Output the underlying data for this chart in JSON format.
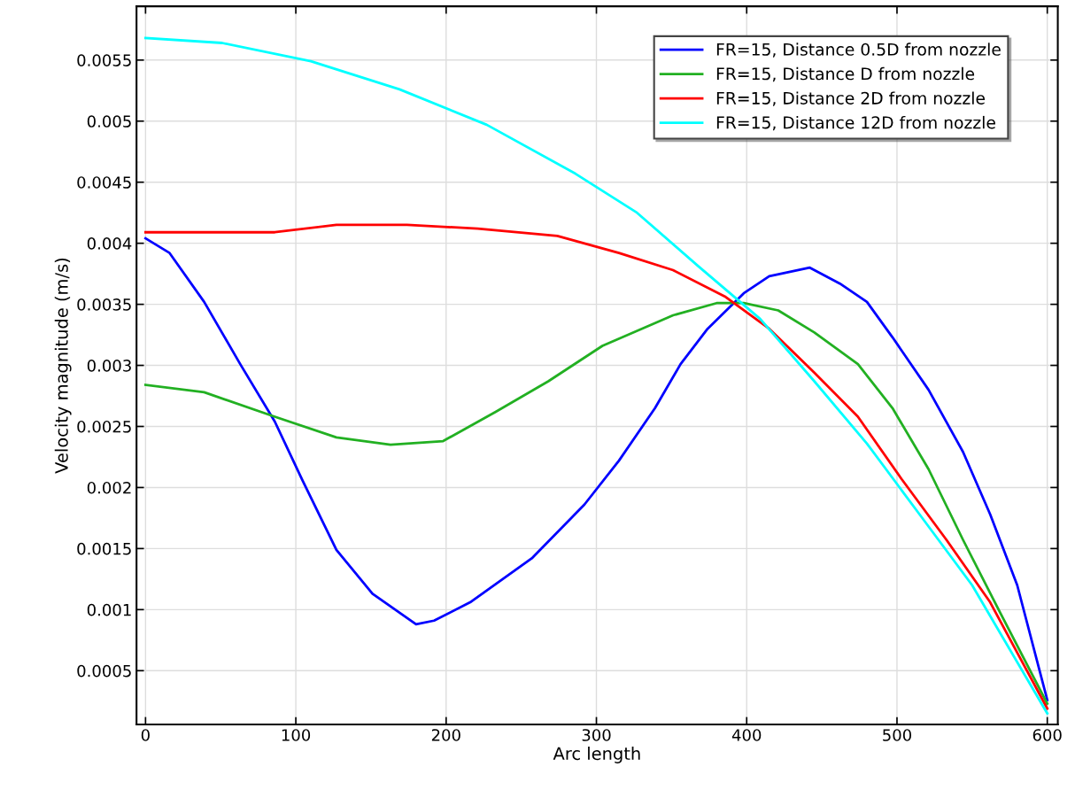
{
  "chart_data": {
    "type": "line",
    "xlabel": "Arc length",
    "ylabel": "Velocity magnitude (m/s)",
    "xlim": [
      -6,
      607
    ],
    "ylim": [
      6e-05,
      0.00594
    ],
    "xticks": [
      0,
      100,
      200,
      300,
      400,
      500,
      600
    ],
    "yticks": [
      0.0005,
      0.001,
      0.0015,
      0.002,
      0.0025,
      0.003,
      0.0035,
      0.004,
      0.0045,
      0.005,
      0.0055
    ],
    "grid": true,
    "legend": "top right",
    "marker": "none",
    "line_style": "solid",
    "series": [
      {
        "name": "FR=15, Distance 0.5D from nozzle",
        "color": "#0000ff",
        "x": [
          0,
          16,
          39,
          63,
          86,
          104,
          127,
          151,
          180,
          192,
          216,
          257,
          292,
          315,
          339,
          356,
          374,
          398,
          415,
          442,
          462,
          480,
          497,
          521,
          544,
          562,
          580,
          600
        ],
        "values": [
          0.00404,
          0.00392,
          0.00352,
          0.00301,
          0.00254,
          0.00207,
          0.00149,
          0.00113,
          0.00088,
          0.00091,
          0.00106,
          0.00142,
          0.00186,
          0.00222,
          0.00265,
          0.00301,
          0.0033,
          0.00359,
          0.00373,
          0.0038,
          0.00367,
          0.00352,
          0.00323,
          0.0028,
          0.00229,
          0.00178,
          0.0012,
          0.00026
        ]
      },
      {
        "name": "FR=15, Distance D from nozzle",
        "color": "#22b022",
        "x": [
          0,
          39,
          86,
          127,
          163,
          198,
          233,
          268,
          304,
          351,
          380,
          398,
          421,
          445,
          474,
          497,
          521,
          544,
          568,
          600
        ],
        "values": [
          0.00284,
          0.00278,
          0.00258,
          0.00241,
          0.00235,
          0.00238,
          0.00262,
          0.00287,
          0.00316,
          0.00341,
          0.00351,
          0.00351,
          0.00345,
          0.00327,
          0.00301,
          0.00265,
          0.00215,
          0.00157,
          0.00099,
          0.00023
        ]
      },
      {
        "name": "FR=15, Distance 2D from nozzle",
        "color": "#ff0000",
        "x": [
          0,
          86,
          127,
          174,
          221,
          274,
          315,
          351,
          386,
          415,
          445,
          474,
          503,
          533,
          562,
          600
        ],
        "values": [
          0.00409,
          0.00409,
          0.00415,
          0.00415,
          0.00412,
          0.00406,
          0.00392,
          0.00378,
          0.00356,
          0.0033,
          0.00294,
          0.00258,
          0.00207,
          0.00157,
          0.00106,
          0.00019
        ]
      },
      {
        "name": "FR=15, Distance 12D from nozzle",
        "color": "#00ffff",
        "x": [
          0,
          51,
          110,
          169,
          227,
          286,
          327,
          368,
          409,
          445,
          480,
          515,
          550,
          600
        ],
        "values": [
          0.00568,
          0.00564,
          0.00549,
          0.00526,
          0.00497,
          0.00457,
          0.00425,
          0.00381,
          0.00338,
          0.00287,
          0.00236,
          0.00178,
          0.0012,
          0.00015
        ]
      }
    ]
  }
}
